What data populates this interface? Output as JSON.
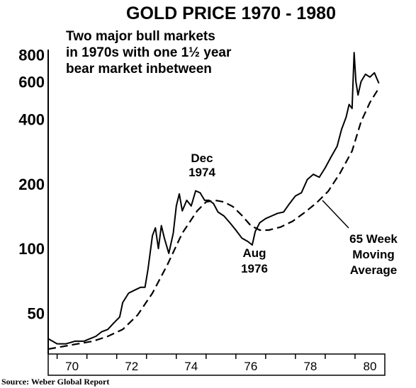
{
  "chart_data": {
    "type": "line",
    "title": "GOLD PRICE 1970 - 1980",
    "subtitle": [
      "Two major bull markets",
      "in 1970s with one 1½ year",
      "bear market inbetween"
    ],
    "xlabel": "",
    "ylabel": "",
    "y_scale": "log",
    "ylim": [
      33,
      900
    ],
    "xlim": [
      1969.7,
      1981.0
    ],
    "y_ticks": [
      50,
      100,
      200,
      400,
      600,
      800
    ],
    "x_ticks": [
      "70",
      "72",
      "74",
      "76",
      "78",
      "80"
    ],
    "series": [
      {
        "name": "",
        "style": "solid",
        "x": [
          1969.7,
          1970.0,
          1970.3,
          1970.6,
          1970.9,
          1971.1,
          1971.3,
          1971.5,
          1971.7,
          1971.9,
          1972.1,
          1972.2,
          1972.4,
          1972.6,
          1972.8,
          1972.95,
          1973.05,
          1973.2,
          1973.3,
          1973.4,
          1973.5,
          1973.6,
          1973.75,
          1973.9,
          1974.0,
          1974.1,
          1974.2,
          1974.35,
          1974.5,
          1974.65,
          1974.8,
          1974.95,
          1975.1,
          1975.25,
          1975.4,
          1975.6,
          1975.8,
          1976.0,
          1976.2,
          1976.4,
          1976.55,
          1976.65,
          1976.8,
          1977.0,
          1977.2,
          1977.4,
          1977.6,
          1977.8,
          1978.0,
          1978.2,
          1978.4,
          1978.6,
          1978.8,
          1979.0,
          1979.2,
          1979.4,
          1979.55,
          1979.7,
          1979.8,
          1979.9,
          1979.97,
          1980.03,
          1980.1,
          1980.2,
          1980.35,
          1980.5,
          1980.65,
          1980.8
        ],
        "values": [
          38,
          36,
          36,
          37,
          37,
          38,
          39,
          41,
          42,
          45,
          48,
          56,
          62,
          64,
          66,
          66,
          80,
          115,
          125,
          100,
          128,
          112,
          95,
          118,
          158,
          180,
          150,
          168,
          158,
          186,
          182,
          168,
          168,
          162,
          148,
          142,
          132,
          122,
          112,
          108,
          104,
          120,
          132,
          138,
          142,
          146,
          148,
          162,
          176,
          182,
          210,
          222,
          215,
          238,
          268,
          300,
          360,
          410,
          470,
          450,
          820,
          600,
          520,
          600,
          650,
          630,
          660,
          590
        ]
      },
      {
        "name": "65 Week Moving Average",
        "style": "dashed",
        "x": [
          1969.7,
          1970.2,
          1970.7,
          1971.2,
          1971.7,
          1972.2,
          1972.7,
          1973.2,
          1973.7,
          1974.2,
          1974.7,
          1975.0,
          1975.3,
          1975.6,
          1975.9,
          1976.2,
          1976.5,
          1976.8,
          1977.1,
          1977.5,
          1977.9,
          1978.3,
          1978.7,
          1979.1,
          1979.5,
          1979.9,
          1980.2,
          1980.5,
          1980.8
        ],
        "values": [
          34,
          35,
          36,
          37,
          39,
          42,
          49,
          62,
          84,
          118,
          150,
          165,
          168,
          165,
          157,
          143,
          128,
          122,
          122,
          126,
          134,
          147,
          163,
          185,
          225,
          285,
          390,
          480,
          560
        ]
      }
    ],
    "annotations": {
      "peak": [
        "Dec",
        "1974"
      ],
      "trough": [
        "Aug",
        "1976"
      ],
      "ma_label": [
        "65 Week",
        "Moving",
        "Average"
      ]
    },
    "source": "Source: Weber Global Report",
    "grid": false,
    "legend": "none"
  }
}
